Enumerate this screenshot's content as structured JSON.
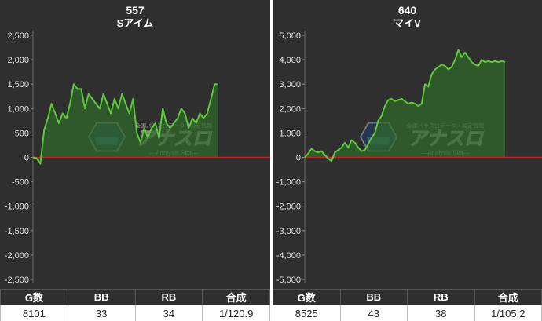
{
  "panels": [
    {
      "machine_number": "557",
      "machine_name": "Sアイム",
      "stats": {
        "headers": [
          "G数",
          "BB",
          "RB",
          "合成"
        ],
        "values": [
          "8101",
          "33",
          "34",
          "1/120.9"
        ]
      }
    },
    {
      "machine_number": "640",
      "machine_name": "マイV",
      "stats": {
        "headers": [
          "G数",
          "BB",
          "RB",
          "合成"
        ],
        "values": [
          "8525",
          "43",
          "38",
          "1/105.2"
        ]
      }
    }
  ],
  "watermark": {
    "tagline": "全国パチスロデータ・設定情報",
    "brand": "アナスロ",
    "sub": "—Analysis Slot—"
  },
  "colors": {
    "panel_bg": "#2f2f2f",
    "line": "#5cc93a",
    "fill": "#2f6b2a",
    "zero_line": "#d02020"
  },
  "chart_data": [
    {
      "type": "area",
      "ylim": [
        -2500,
        2500
      ],
      "yticks": [
        2500,
        2000,
        1500,
        1000,
        500,
        0,
        -500,
        -1000,
        -1500,
        -2000,
        -2500
      ],
      "ytick_labels": [
        "2,500",
        "2,000",
        "1,500",
        "1,000",
        "500",
        "0",
        "-500",
        "-1,000",
        "-1,500",
        "-2,000",
        "-2,500"
      ],
      "x": [
        0,
        1,
        2,
        3,
        4,
        5,
        6,
        7,
        8,
        9,
        10,
        11,
        12,
        13,
        14,
        15,
        16,
        17,
        18,
        19,
        20,
        21,
        22,
        23,
        24,
        25,
        26,
        27,
        28,
        29,
        30,
        31,
        32,
        33,
        34,
        35,
        36,
        37,
        38,
        39,
        40,
        41,
        42,
        43,
        44,
        45,
        46,
        47,
        48,
        49,
        50
      ],
      "values": [
        0,
        -20,
        -130,
        560,
        800,
        1100,
        900,
        700,
        900,
        800,
        1100,
        1500,
        1400,
        1400,
        1000,
        1300,
        1200,
        1100,
        1000,
        1300,
        1100,
        900,
        1200,
        1000,
        1300,
        1100,
        900,
        1200,
        500,
        300,
        600,
        400,
        600,
        700,
        400,
        1000,
        700,
        600,
        700,
        800,
        1000,
        900,
        600,
        800,
        700,
        900,
        800,
        900,
        1200,
        1500,
        1500
      ]
    },
    {
      "type": "area",
      "ylim": [
        -5000,
        5000
      ],
      "yticks": [
        5000,
        4000,
        3000,
        2000,
        1000,
        0,
        -1000,
        -2000,
        -3000,
        -4000,
        -5000
      ],
      "ytick_labels": [
        "5,000",
        "4,000",
        "3,000",
        "2,000",
        "1,000",
        "0",
        "-1,000",
        "-2,000",
        "-3,000",
        "-4,000",
        "-5,000"
      ],
      "x": [
        0,
        1,
        2,
        3,
        4,
        5,
        6,
        7,
        8,
        9,
        10,
        11,
        12,
        13,
        14,
        15,
        16,
        17,
        18,
        19,
        20,
        21,
        22,
        23,
        24,
        25,
        26,
        27,
        28,
        29,
        30,
        31,
        32,
        33,
        34,
        35,
        36,
        37,
        38,
        39,
        40,
        41,
        42,
        43,
        44,
        45,
        46,
        47,
        48,
        49,
        50,
        51,
        52,
        53,
        54,
        55,
        56,
        57,
        58,
        59,
        60
      ],
      "values": [
        0,
        150,
        350,
        250,
        200,
        250,
        100,
        -50,
        -150,
        200,
        300,
        400,
        600,
        400,
        700,
        600,
        400,
        250,
        300,
        550,
        800,
        1000,
        1500,
        1700,
        2100,
        2350,
        2400,
        2300,
        2350,
        2400,
        2300,
        2200,
        2250,
        2200,
        2100,
        2200,
        3000,
        2900,
        3400,
        3600,
        3700,
        3800,
        3750,
        3600,
        3700,
        4000,
        4400,
        4100,
        4300,
        4100,
        3900,
        3800,
        3750,
        4000,
        3900,
        3950,
        3900,
        3950,
        3900,
        3950,
        3900
      ]
    }
  ]
}
